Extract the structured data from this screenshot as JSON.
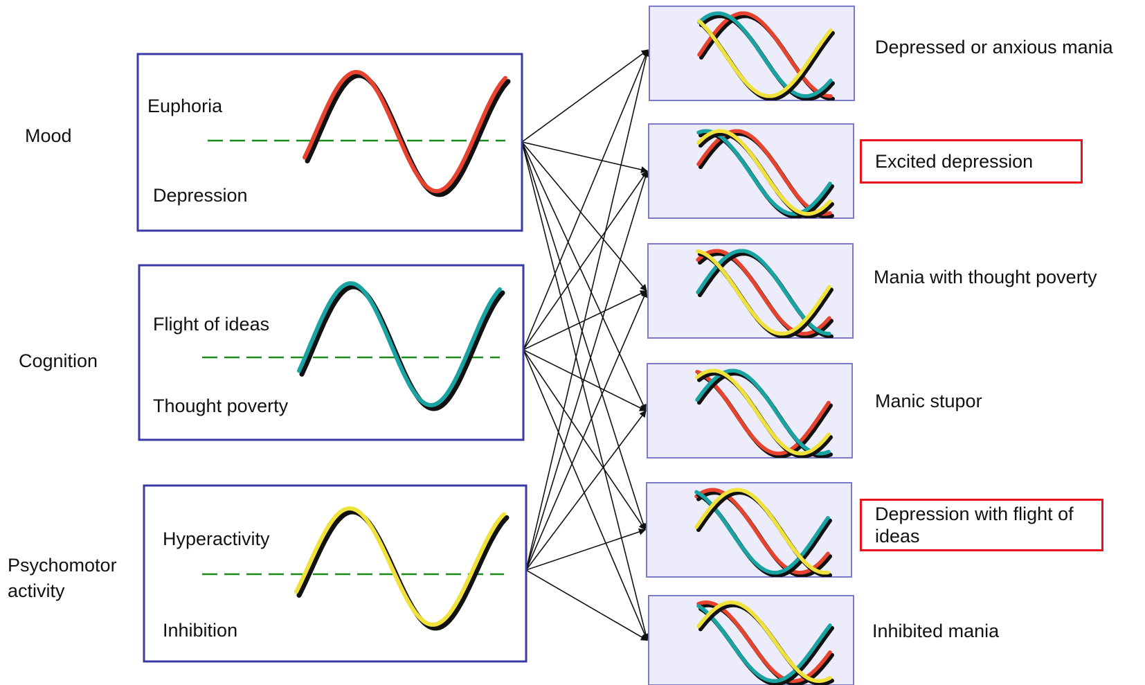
{
  "dimensions": [
    {
      "id": "mood",
      "label": "Mood",
      "high": "Euphoria",
      "low": "Depression",
      "color": "#e8432e"
    },
    {
      "id": "cognition",
      "label": "Cognition",
      "high": "Flight of ideas",
      "low": "Thought poverty",
      "color": "#1aa3a3"
    },
    {
      "id": "psychomotor",
      "label": "Psychomotor\nactivity",
      "label_lines": [
        "Psychomotor",
        "activity"
      ],
      "high": "Hyperactivity",
      "low": "Inhibition",
      "color": "#f0e23a"
    }
  ],
  "mixed_states": [
    {
      "label": "Depressed or anxious mania",
      "highlighted": false
    },
    {
      "label": "Excited depression",
      "highlighted": true
    },
    {
      "label": "Mania with thought poverty",
      "highlighted": false
    },
    {
      "label": "Manic stupor",
      "highlighted": false
    },
    {
      "label": "Depression with flight of ideas",
      "highlighted": true
    },
    {
      "label": "Inhibited mania",
      "highlighted": false
    }
  ],
  "colors": {
    "box_border": "#3a3aa6",
    "mixed_box_fill": "#ececfa",
    "mixed_box_border": "#7a7ac8",
    "baseline": "#1a8a1a",
    "highlight": "#e8131b",
    "arrow": "#111111"
  }
}
